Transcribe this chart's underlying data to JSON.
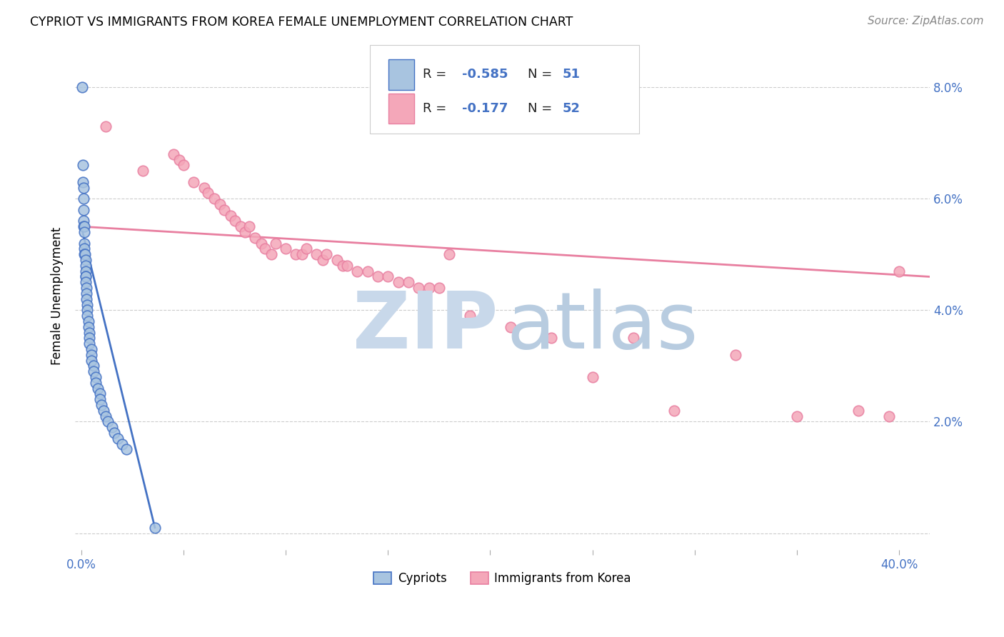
{
  "title": "CYPRIOT VS IMMIGRANTS FROM KOREA FEMALE UNEMPLOYMENT CORRELATION CHART",
  "source": "Source: ZipAtlas.com",
  "ylabel": "Female Unemployment",
  "xlim": [
    -0.003,
    0.415
  ],
  "ylim": [
    -0.003,
    0.088
  ],
  "x_tick_positions": [
    0.0,
    0.05,
    0.1,
    0.15,
    0.2,
    0.25,
    0.3,
    0.35,
    0.4
  ],
  "x_tick_labels": [
    "0.0%",
    "",
    "",
    "",
    "",
    "",
    "",
    "",
    "40.0%"
  ],
  "y_tick_positions": [
    0.0,
    0.02,
    0.04,
    0.06,
    0.08
  ],
  "y_tick_labels_right": [
    "",
    "2.0%",
    "4.0%",
    "6.0%",
    "8.0%"
  ],
  "legend_label1": "Cypriots",
  "legend_label2": "Immigrants from Korea",
  "legend_R1": "-0.585",
  "legend_N1": "51",
  "legend_R2": "-0.177",
  "legend_N2": "52",
  "color_cypriot_fill": "#a8c4e0",
  "color_cypriot_edge": "#4472c4",
  "color_korea_fill": "#f4a7b9",
  "color_korea_edge": "#e87fa0",
  "color_cypriot_line": "#4472c4",
  "color_korea_line": "#e87fa0",
  "watermark_zip_color": "#c8d8ea",
  "watermark_atlas_color": "#b8cce0",
  "cypriot_x": [
    0.0005,
    0.0008,
    0.0008,
    0.001,
    0.001,
    0.001,
    0.0012,
    0.0012,
    0.0013,
    0.0015,
    0.0015,
    0.0015,
    0.0015,
    0.0018,
    0.002,
    0.002,
    0.002,
    0.002,
    0.0022,
    0.0022,
    0.0025,
    0.0025,
    0.0025,
    0.003,
    0.003,
    0.003,
    0.0035,
    0.0035,
    0.004,
    0.004,
    0.004,
    0.005,
    0.005,
    0.005,
    0.006,
    0.006,
    0.007,
    0.007,
    0.008,
    0.009,
    0.009,
    0.01,
    0.011,
    0.012,
    0.013,
    0.015,
    0.016,
    0.018,
    0.02,
    0.022,
    0.036
  ],
  "cypriot_y": [
    0.08,
    0.066,
    0.063,
    0.062,
    0.06,
    0.058,
    0.056,
    0.055,
    0.055,
    0.054,
    0.052,
    0.051,
    0.05,
    0.05,
    0.049,
    0.048,
    0.047,
    0.046,
    0.046,
    0.045,
    0.044,
    0.043,
    0.042,
    0.041,
    0.04,
    0.039,
    0.038,
    0.037,
    0.036,
    0.035,
    0.034,
    0.033,
    0.032,
    0.031,
    0.03,
    0.029,
    0.028,
    0.027,
    0.026,
    0.025,
    0.024,
    0.023,
    0.022,
    0.021,
    0.02,
    0.019,
    0.018,
    0.017,
    0.016,
    0.015,
    0.001
  ],
  "korea_x": [
    0.012,
    0.03,
    0.045,
    0.048,
    0.05,
    0.055,
    0.06,
    0.062,
    0.065,
    0.068,
    0.07,
    0.073,
    0.075,
    0.078,
    0.08,
    0.082,
    0.085,
    0.088,
    0.09,
    0.093,
    0.095,
    0.1,
    0.105,
    0.108,
    0.11,
    0.115,
    0.118,
    0.12,
    0.125,
    0.128,
    0.13,
    0.135,
    0.14,
    0.145,
    0.15,
    0.155,
    0.16,
    0.165,
    0.17,
    0.175,
    0.18,
    0.19,
    0.21,
    0.23,
    0.25,
    0.27,
    0.29,
    0.32,
    0.35,
    0.38,
    0.395,
    0.4
  ],
  "korea_y": [
    0.073,
    0.065,
    0.068,
    0.067,
    0.066,
    0.063,
    0.062,
    0.061,
    0.06,
    0.059,
    0.058,
    0.057,
    0.056,
    0.055,
    0.054,
    0.055,
    0.053,
    0.052,
    0.051,
    0.05,
    0.052,
    0.051,
    0.05,
    0.05,
    0.051,
    0.05,
    0.049,
    0.05,
    0.049,
    0.048,
    0.048,
    0.047,
    0.047,
    0.046,
    0.046,
    0.045,
    0.045,
    0.044,
    0.044,
    0.044,
    0.05,
    0.039,
    0.037,
    0.035,
    0.028,
    0.035,
    0.022,
    0.032,
    0.021,
    0.022,
    0.021,
    0.047
  ],
  "cyp_trendline_x": [
    0.0,
    0.036
  ],
  "cyp_trendline_y": [
    0.055,
    0.001
  ],
  "kor_trendline_x": [
    0.0,
    0.415
  ],
  "kor_trendline_y": [
    0.055,
    0.046
  ]
}
